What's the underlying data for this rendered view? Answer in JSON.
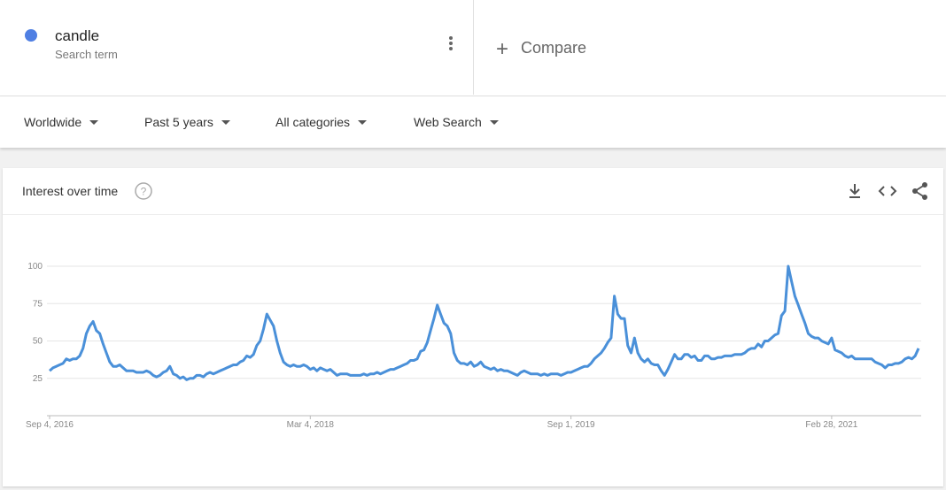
{
  "header": {
    "term": "candle",
    "term_type": "Search term",
    "term_color": "#4f7fe3",
    "compare": "Compare"
  },
  "filters": [
    "Worldwide",
    "Past 5 years",
    "All categories",
    "Web Search"
  ],
  "widget_title": "Interest over time",
  "chart_data": {
    "type": "line",
    "color": "#4a90d9",
    "grid": true,
    "xlim": [
      0,
      260
    ],
    "xticks": [
      {
        "value": 0,
        "label": "Sep 4, 2016"
      },
      {
        "value": 78,
        "label": "Mar 4, 2018"
      },
      {
        "value": 156,
        "label": "Sep 1, 2019"
      },
      {
        "value": 234,
        "label": "Feb 28, 2021"
      }
    ],
    "ylim": [
      0,
      100
    ],
    "yticks": [
      25,
      50,
      75,
      100
    ],
    "values": [
      30,
      32,
      33,
      34,
      35,
      38,
      37,
      38,
      38,
      40,
      45,
      55,
      60,
      63,
      57,
      55,
      48,
      42,
      36,
      33,
      33,
      34,
      32,
      30,
      30,
      30,
      29,
      29,
      29,
      30,
      29,
      27,
      26,
      27,
      29,
      30,
      33,
      28,
      27,
      25,
      26,
      24,
      25,
      25,
      27,
      27,
      26,
      28,
      29,
      28,
      29,
      30,
      31,
      32,
      33,
      34,
      34,
      36,
      37,
      40,
      39,
      41,
      47,
      50,
      58,
      68,
      64,
      60,
      50,
      42,
      36,
      34,
      33,
      34,
      33,
      33,
      34,
      33,
      31,
      32,
      30,
      32,
      31,
      30,
      31,
      29,
      27,
      28,
      28,
      28,
      27,
      27,
      27,
      27,
      28,
      27,
      28,
      28,
      29,
      28,
      29,
      30,
      31,
      31,
      32,
      33,
      34,
      35,
      37,
      37,
      38,
      43,
      44,
      49,
      57,
      65,
      74,
      68,
      62,
      60,
      55,
      42,
      37,
      35,
      35,
      34,
      36,
      33,
      34,
      36,
      33,
      32,
      31,
      32,
      30,
      31,
      30,
      30,
      29,
      28,
      27,
      29,
      30,
      29,
      28,
      28,
      28,
      27,
      28,
      27,
      28,
      28,
      28,
      27,
      28,
      29,
      29,
      30,
      31,
      32,
      33,
      33,
      35,
      38,
      40,
      42,
      45,
      49,
      52,
      80,
      68,
      65,
      65,
      47,
      42,
      52,
      42,
      38,
      36,
      38,
      35,
      34,
      34,
      30,
      27,
      31,
      36,
      41,
      38,
      38,
      41,
      41,
      39,
      40,
      37,
      37,
      40,
      40,
      38,
      38,
      39,
      39,
      40,
      40,
      40,
      41,
      41,
      41,
      42,
      44,
      45,
      45,
      48,
      46,
      50,
      50,
      52,
      54,
      55,
      67,
      70,
      100,
      90,
      80,
      74,
      68,
      62,
      55,
      53,
      52,
      52,
      50,
      49,
      48,
      52,
      44,
      43,
      42,
      40,
      39,
      40,
      38,
      38,
      38,
      38,
      38,
      38,
      36,
      35,
      34,
      32,
      34,
      34,
      35,
      35,
      36,
      38,
      39,
      38,
      40,
      45
    ]
  }
}
